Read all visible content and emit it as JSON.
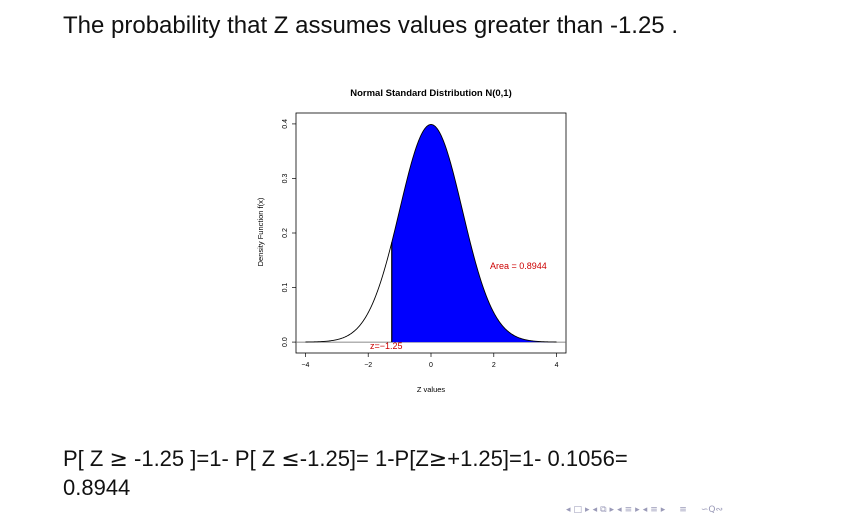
{
  "slide": {
    "title": "The probability that Z assumes values greater than -1.25 .",
    "formula_line1_parts": [
      "P[ Z ",
      "≥",
      " -1.25 ]=1- P[ Z ",
      "≤",
      "-1.25]= 1-P[Z",
      "≥",
      "+1.25]=1- 0.1056="
    ],
    "formula_line2": "0.8944"
  },
  "chart_data": {
    "type": "area",
    "title": "Normal Standard Distribution N(0,1)",
    "xlabel": "Z values",
    "ylabel": "Density Function f(x)",
    "xlim": [
      -4.3,
      4.3
    ],
    "ylim": [
      -0.02,
      0.42
    ],
    "x_ticks": [
      "-4",
      "-2",
      "0",
      "2",
      "4"
    ],
    "y_ticks": [
      "0.0",
      "0.1",
      "0.2",
      "0.3",
      "0.4"
    ],
    "curve": {
      "mean": 0,
      "sd": 1,
      "x_from": -4,
      "x_to": 4
    },
    "shaded_from": -1.25,
    "shaded_to": 4,
    "shade_color": "#0000ff",
    "annotation_color": "#cc0000",
    "area_label": "Area = 0.8944",
    "z_label": "z=−1.25"
  },
  "nav": {
    "icons": [
      "nav-left-triangle-icon",
      "frame-box-icon",
      "nav-right-triangle-icon",
      "nav-left-triangle-icon",
      "subsection-icon",
      "nav-right-triangle-icon",
      "nav-left-triangle-icon",
      "section-icon",
      "nav-right-triangle-icon",
      "nav-left-triangle-icon",
      "document-icon",
      "nav-right-triangle-icon",
      "align-icon",
      "search-icon"
    ],
    "color": "#9a9ab8"
  }
}
